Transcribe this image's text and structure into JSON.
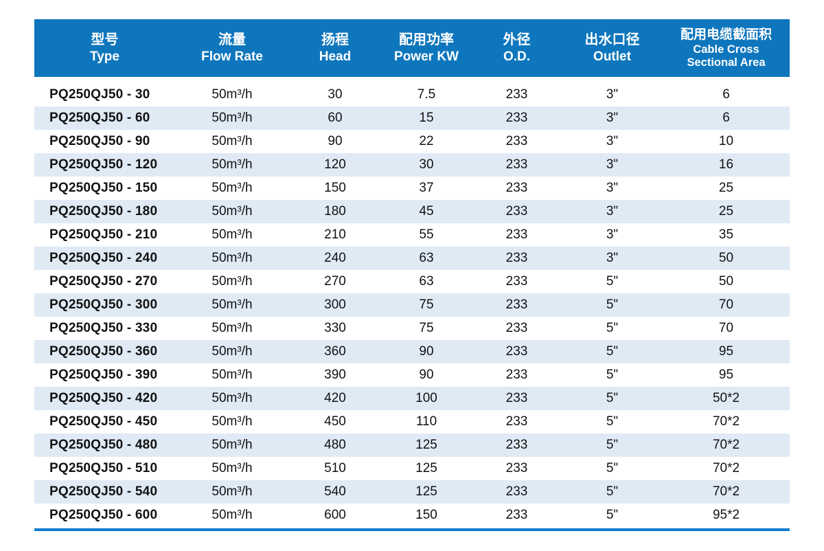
{
  "table": {
    "columns": [
      {
        "cn": "型号",
        "en": "Type"
      },
      {
        "cn": "流量",
        "en": "Flow Rate"
      },
      {
        "cn": "扬程",
        "en": "Head"
      },
      {
        "cn": "配用功率",
        "en": "Power KW"
      },
      {
        "cn": "外径",
        "en": "O.D."
      },
      {
        "cn": "出水口径",
        "en": "Outlet"
      },
      {
        "cn": "配用电缆截面积",
        "en": "Cable Cross\nSectional Area"
      }
    ],
    "rows": [
      [
        "PQ250QJ50 - 30",
        "50m³/h",
        "30",
        "7.5",
        "233",
        "3\"",
        "6"
      ],
      [
        "PQ250QJ50 - 60",
        "50m³/h",
        "60",
        "15",
        "233",
        "3\"",
        "6"
      ],
      [
        "PQ250QJ50 - 90",
        "50m³/h",
        "90",
        "22",
        "233",
        "3\"",
        "10"
      ],
      [
        "PQ250QJ50 - 120",
        "50m³/h",
        "120",
        "30",
        "233",
        "3\"",
        "16"
      ],
      [
        "PQ250QJ50 - 150",
        "50m³/h",
        "150",
        "37",
        "233",
        "3\"",
        "25"
      ],
      [
        "PQ250QJ50 - 180",
        "50m³/h",
        "180",
        "45",
        "233",
        "3\"",
        "25"
      ],
      [
        "PQ250QJ50 - 210",
        "50m³/h",
        "210",
        "55",
        "233",
        "3\"",
        "35"
      ],
      [
        "PQ250QJ50 - 240",
        "50m³/h",
        "240",
        "63",
        "233",
        "3\"",
        "50"
      ],
      [
        "PQ250QJ50 - 270",
        "50m³/h",
        "270",
        "63",
        "233",
        "5\"",
        "50"
      ],
      [
        "PQ250QJ50 - 300",
        "50m³/h",
        "300",
        "75",
        "233",
        "5\"",
        "70"
      ],
      [
        "PQ250QJ50 - 330",
        "50m³/h",
        "330",
        "75",
        "233",
        "5\"",
        "70"
      ],
      [
        "PQ250QJ50 - 360",
        "50m³/h",
        "360",
        "90",
        "233",
        "5\"",
        "95"
      ],
      [
        "PQ250QJ50 - 390",
        "50m³/h",
        "390",
        "90",
        "233",
        "5\"",
        "95"
      ],
      [
        "PQ250QJ50 - 420",
        "50m³/h",
        "420",
        "100",
        "233",
        "5\"",
        "50*2"
      ],
      [
        "PQ250QJ50 - 450",
        "50m³/h",
        "450",
        "110",
        "233",
        "5\"",
        "70*2"
      ],
      [
        "PQ250QJ50 - 480",
        "50m³/h",
        "480",
        "125",
        "233",
        "5\"",
        "70*2"
      ],
      [
        "PQ250QJ50 - 510",
        "50m³/h",
        "510",
        "125",
        "233",
        "5\"",
        "70*2"
      ],
      [
        "PQ250QJ50 - 540",
        "50m³/h",
        "540",
        "125",
        "233",
        "5\"",
        "70*2"
      ],
      [
        "PQ250QJ50 - 600",
        "50m³/h",
        "600",
        "150",
        "233",
        "5\"",
        "95*2"
      ]
    ]
  },
  "colors": {
    "header_bg": "#0e76bd",
    "stripe": "#dfeaf5",
    "bottom_rule": "#0f7ccd",
    "header_text": "#ffffff",
    "body_text": "#121212",
    "page_bg": "#ffffff"
  }
}
